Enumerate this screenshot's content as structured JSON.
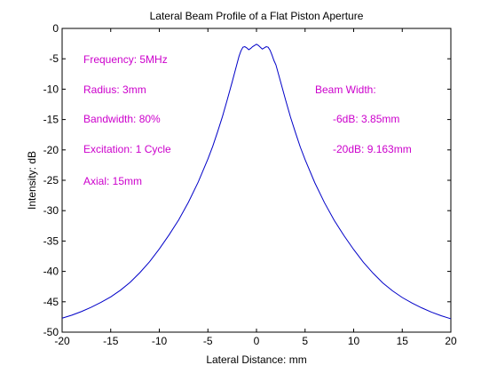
{
  "chart_data": {
    "type": "line",
    "title": "Lateral Beam Profile of a Flat Piston Aperture",
    "xlabel": "Lateral Distance: mm",
    "ylabel": "Intensity: dB",
    "xlim": [
      -20,
      20
    ],
    "ylim": [
      -50,
      0
    ],
    "xticks": [
      -20,
      -15,
      -10,
      -5,
      0,
      5,
      10,
      15,
      20
    ],
    "yticks": [
      0,
      -5,
      -10,
      -15,
      -20,
      -25,
      -30,
      -35,
      -40,
      -45,
      -50
    ],
    "grid": false,
    "line_color": "#0000c8",
    "annotation_color": "#cc00cc",
    "series": [
      {
        "x": [
          -20,
          -19,
          -18,
          -17,
          -16,
          -15,
          -14,
          -13,
          -12,
          -11,
          -10,
          -9,
          -8,
          -7,
          -6,
          -5,
          -4.5,
          -4,
          -3.5,
          -3,
          -2.5,
          -2,
          -1.8,
          -1.6,
          -1.4,
          -1.2,
          -1,
          -0.8,
          -0.6,
          -0.4,
          -0.2,
          0,
          0.2,
          0.4,
          0.6,
          0.8,
          1,
          1.2,
          1.4,
          1.6,
          1.8,
          2,
          2.5,
          3,
          3.5,
          4,
          4.5,
          5,
          6,
          7,
          8,
          9,
          10,
          11,
          12,
          13,
          14,
          15,
          16,
          17,
          18,
          19,
          20
        ],
        "y": [
          -47.7,
          -47.2,
          -46.6,
          -45.9,
          -45.1,
          -44.2,
          -43.1,
          -41.8,
          -40.2,
          -38.4,
          -36.3,
          -34.0,
          -31.5,
          -28.6,
          -25.3,
          -21.5,
          -19.4,
          -17.0,
          -14.5,
          -11.7,
          -8.8,
          -5.8,
          -4.6,
          -3.7,
          -3.1,
          -3.0,
          -3.2,
          -3.5,
          -3.3,
          -3.0,
          -2.8,
          -2.6,
          -2.8,
          -3.1,
          -3.4,
          -3.2,
          -3.0,
          -3.1,
          -3.6,
          -4.4,
          -5.3,
          -6.0,
          -8.9,
          -11.8,
          -14.6,
          -17.1,
          -19.5,
          -21.6,
          -25.4,
          -28.7,
          -31.6,
          -34.1,
          -36.4,
          -38.5,
          -40.3,
          -41.9,
          -43.2,
          -44.3,
          -45.2,
          -46.0,
          -46.7,
          -47.3,
          -47.8
        ]
      }
    ]
  },
  "annotations": {
    "frequency": "Frequency: 5MHz",
    "radius": "Radius: 3mm",
    "bandwidth": "Bandwidth: 80%",
    "excitation": "Excitation: 1 Cycle",
    "axial": "Axial: 15mm",
    "beam_width": "Beam Width:",
    "width_6db": "-6dB: 3.85mm",
    "width_20db": "-20dB: 9.163mm"
  }
}
